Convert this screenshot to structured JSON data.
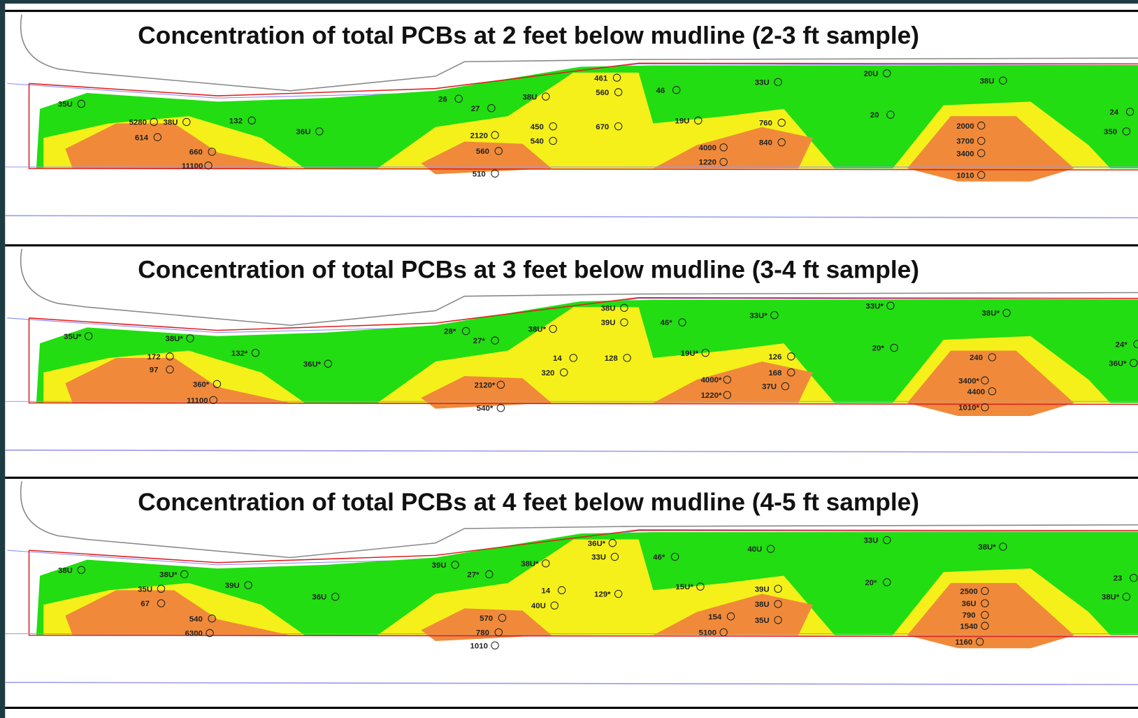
{
  "panels": [
    {
      "title": "Concentration of total PCBs at 2 feet below mudline (2-3 ft sample)",
      "samples": [
        "35U",
        "5280",
        "38U",
        "614",
        "132",
        "36U",
        "660",
        "11100",
        "26",
        "27",
        "38U",
        "461",
        "560",
        "46",
        "2120",
        "450",
        "540",
        "670",
        "560",
        "510",
        "33U",
        "20U",
        "38U",
        "19U",
        "760",
        "840",
        "4000",
        "1220",
        "20",
        "2000",
        "3700",
        "3400",
        "1010",
        "24",
        "350"
      ]
    },
    {
      "title": "Concentration of total PCBs at 3 feet below mudline (3-4 ft sample)",
      "samples": [
        "35U*",
        "38U*",
        "172",
        "97",
        "132*",
        "36U*",
        "360*",
        "11100",
        "28*",
        "27*",
        "38U*",
        "38U",
        "39U",
        "46*",
        "14",
        "320",
        "128",
        "19U*",
        "2120*",
        "540*",
        "33U*",
        "33U*",
        "38U*",
        "126",
        "168",
        "37U",
        "4000*",
        "1220*",
        "20*",
        "240",
        "3400*",
        "4400",
        "1010*",
        "24*",
        "36U*"
      ]
    },
    {
      "title": "Concentration of total PCBs at 4 feet below mudline (4-5 ft sample)",
      "samples": [
        "38U",
        "38U*",
        "35U",
        "67",
        "39U",
        "36U",
        "540",
        "6300",
        "39U",
        "27*",
        "38U*",
        "36U*",
        "33U",
        "46*",
        "14",
        "40U",
        "129*",
        "15U*",
        "570",
        "780",
        "1010",
        "40U",
        "33U",
        "38U*",
        "39U",
        "38U",
        "35U",
        "154",
        "5100",
        "20*",
        "2500",
        "36U",
        "790",
        "1540",
        "1160",
        "23",
        "38U*"
      ]
    }
  ]
}
